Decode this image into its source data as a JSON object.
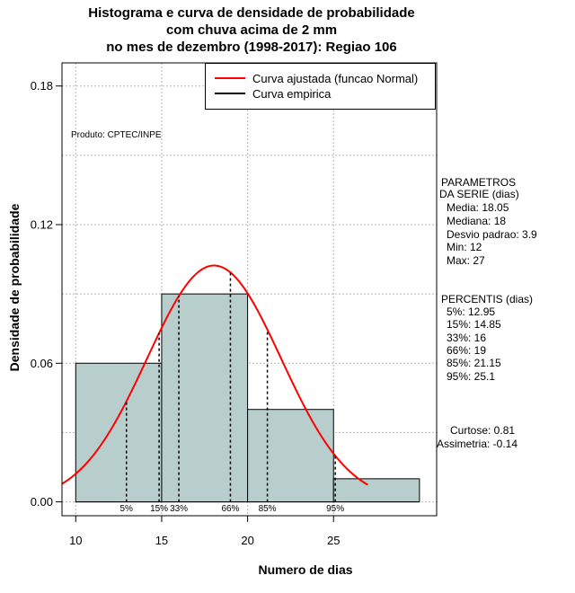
{
  "title_lines": [
    "Histograma e curva de densidade de probabilidade",
    "com chuva acima de 2 mm",
    "no mes de dezembro (1998-2017): Regiao 106"
  ],
  "produto": "Produto: CPTEC/INPE",
  "legend": {
    "items": [
      {
        "label": "Curva ajustada (funcao Normal)",
        "color": "#ff0000"
      },
      {
        "label": "Curva empirica",
        "color": "#000000"
      }
    ]
  },
  "parametros": {
    "header": [
      "PARAMETROS",
      "DA SERIE (dias)"
    ],
    "lines": [
      "Media: 18.05",
      "Mediana: 18",
      "Desvio padrao: 3.9",
      "Min: 12",
      "Max: 27"
    ]
  },
  "percentis": {
    "header": "PERCENTIS (dias)",
    "lines": [
      "5%: 12.95",
      "15%: 14.85",
      "33%: 16",
      "66%: 19",
      "85%: 21.15",
      "95%: 25.1"
    ]
  },
  "shape": {
    "lines": [
      "Curtose: 0.81",
      "Assimetria: -0.14"
    ]
  },
  "chart_data": {
    "type": "bar",
    "title": "Histograma e curva de densidade de probabilidade com chuva acima de 2 mm no mes de dezembro (1998-2017): Regiao 106",
    "xlabel": "Numero de dias",
    "ylabel": "Densidade de probabilidade",
    "xlim": [
      9.2,
      31
    ],
    "ylim": [
      -0.006,
      0.19
    ],
    "x_ticks": [
      10,
      15,
      20,
      25
    ],
    "y_ticks": [
      0.0,
      0.06,
      0.12,
      0.18
    ],
    "y_tick_labels": [
      "0.00",
      "0.06",
      "0.12",
      "0.18"
    ],
    "grid": true,
    "legend_position": "top-right",
    "bins": [
      {
        "x0": 10,
        "x1": 15,
        "density": 0.06
      },
      {
        "x0": 15,
        "x1": 20,
        "density": 0.09
      },
      {
        "x0": 20,
        "x1": 25,
        "density": 0.04
      },
      {
        "x0": 25,
        "x1": 30,
        "density": 0.01
      }
    ],
    "bar_color": "#b7cecd",
    "normal_fit": {
      "mean": 18.05,
      "sd": 3.9,
      "x_range": [
        9.2,
        27
      ],
      "color": "#ff0000"
    },
    "percentiles": [
      {
        "label": "5%",
        "value": 12.95
      },
      {
        "label": "15%",
        "value": 14.85
      },
      {
        "label": "33%",
        "value": 16
      },
      {
        "label": "66%",
        "value": 19
      },
      {
        "label": "85%",
        "value": 21.15
      },
      {
        "label": "95%",
        "value": 25.1
      }
    ]
  }
}
